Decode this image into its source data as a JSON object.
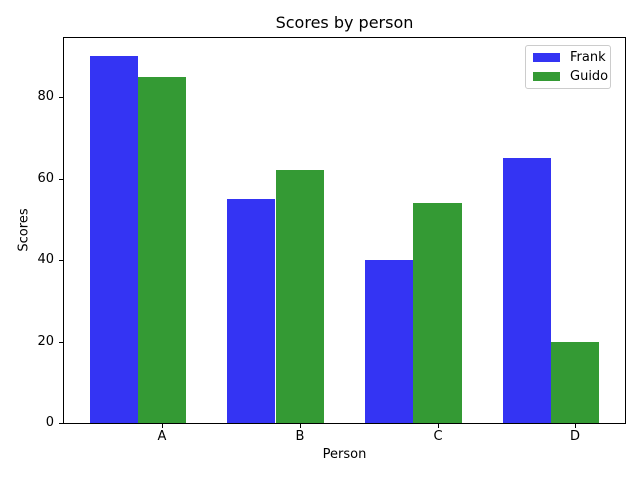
{
  "chart_data": {
    "type": "bar",
    "title": "Scores by person",
    "xlabel": "Person",
    "ylabel": "Scores",
    "categories": [
      "A",
      "B",
      "C",
      "D"
    ],
    "series": [
      {
        "name": "Frank",
        "color": "#3434f3",
        "values": [
          90,
          55,
          40,
          65
        ]
      },
      {
        "name": "Guido",
        "color": "#349a34",
        "values": [
          85,
          62,
          54,
          20
        ]
      }
    ],
    "yticks": [
      0,
      20,
      40,
      60,
      80
    ],
    "ylim": [
      0,
      94.5
    ],
    "xlim": [
      -0.71,
      3.36
    ],
    "bar_width": 0.35,
    "bar_offsets": [
      -0.35,
      0
    ],
    "grid": false,
    "legend_position": "upper right",
    "background_color": "#ffffff",
    "spine_color": "#000000"
  }
}
